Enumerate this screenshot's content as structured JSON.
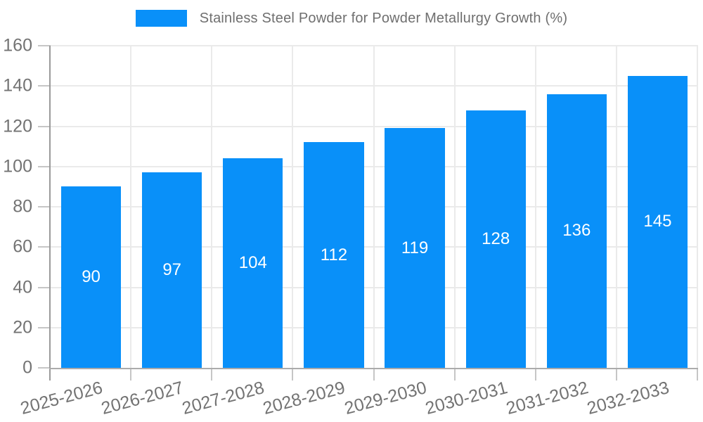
{
  "legend": {
    "label": "Stainless Steel Powder for Powder Metallurgy Growth (%)"
  },
  "colors": {
    "bar": "#0990f9",
    "bar_label_text": "#ffffff",
    "axis_text": "#737373",
    "legend_text": "#6f6f6f",
    "gridline": "#eaeaea",
    "axis_line": "#9a9a9a",
    "background": "#ffffff"
  },
  "chart_data": {
    "type": "bar",
    "title": "Stainless Steel Powder for Powder Metallurgy Growth (%)",
    "categories": [
      "2025-2026",
      "2026-2027",
      "2027-2028",
      "2028-2029",
      "2029-2030",
      "2030-2031",
      "2031-2032",
      "2032-2033"
    ],
    "values": [
      90,
      97,
      104,
      112,
      119,
      128,
      136,
      145
    ],
    "xlabel": "",
    "ylabel": "",
    "ylim": [
      0,
      160
    ],
    "yticks": [
      0,
      20,
      40,
      60,
      80,
      100,
      120,
      140,
      160
    ],
    "grid": true,
    "legend_position": "top",
    "bar_color": "#0990f9",
    "bar_width_ratio": 0.74,
    "value_labels": "inside-center",
    "x_label_rotation_deg": -15
  }
}
